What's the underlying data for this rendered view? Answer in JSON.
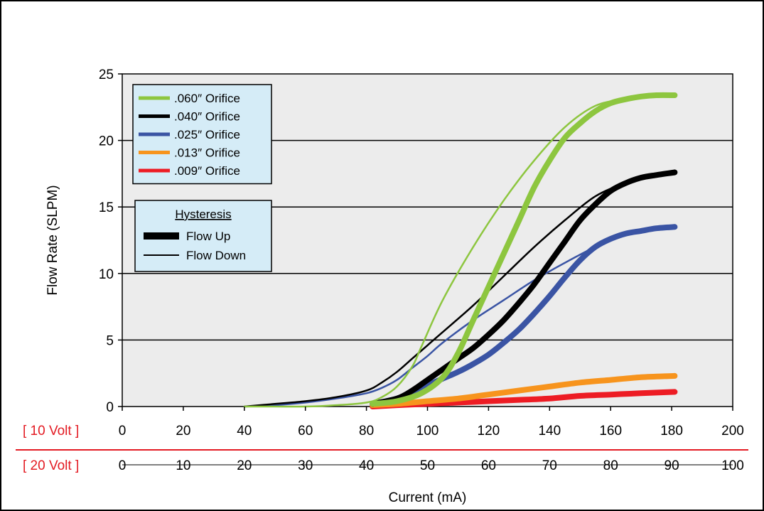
{
  "chart_data": {
    "type": "line",
    "ylabel": "Flow Rate (SLPM)",
    "xlabel": "Current (mA)",
    "ylim": [
      0,
      25
    ],
    "yticks": [
      0,
      5,
      10,
      15,
      20,
      25
    ],
    "grid": "horizontal",
    "xlim": [
      0,
      200
    ],
    "xaxes": [
      {
        "label": "[ 10 Volt ]",
        "ticks": [
          "0",
          "20",
          "40",
          "60",
          "80",
          "100",
          "120",
          "140",
          "160",
          "180",
          "200"
        ]
      },
      {
        "label": "[ 20 Volt ]",
        "ticks": [
          "0",
          "10",
          "20",
          "30",
          "40",
          "50",
          "60",
          "70",
          "80",
          "90",
          "100"
        ]
      }
    ],
    "legend_position": "top-left",
    "series": [
      {
        "name": ".060″ Orifice",
        "color": "#8dc63f",
        "up": [
          [
            82,
            0.2
          ],
          [
            90,
            0.4
          ],
          [
            98,
            1.0
          ],
          [
            105,
            2.2
          ],
          [
            110,
            4.0
          ],
          [
            115,
            6.5
          ],
          [
            120,
            9.0
          ],
          [
            125,
            11.5
          ],
          [
            130,
            14.0
          ],
          [
            135,
            16.5
          ],
          [
            140,
            18.5
          ],
          [
            145,
            20.2
          ],
          [
            150,
            21.3
          ],
          [
            155,
            22.2
          ],
          [
            160,
            22.8
          ],
          [
            165,
            23.1
          ],
          [
            170,
            23.3
          ],
          [
            175,
            23.4
          ],
          [
            181,
            23.4
          ]
        ],
        "down": [
          [
            181,
            23.4
          ],
          [
            175,
            23.3
          ],
          [
            165,
            23.1
          ],
          [
            155,
            22.6
          ],
          [
            145,
            21.0
          ],
          [
            135,
            18.5
          ],
          [
            125,
            15.5
          ],
          [
            115,
            12.0
          ],
          [
            105,
            8.0
          ],
          [
            98,
            4.5
          ],
          [
            95,
            3.0
          ],
          [
            90,
            1.5
          ],
          [
            85,
            0.7
          ],
          [
            80,
            0.3
          ],
          [
            70,
            0.1
          ],
          [
            60,
            0.0
          ],
          [
            50,
            0.0
          ],
          [
            40,
            0.0
          ]
        ]
      },
      {
        "name": ".040″ Orifice",
        "color": "#000000",
        "up": [
          [
            82,
            0.2
          ],
          [
            90,
            0.6
          ],
          [
            95,
            1.2
          ],
          [
            100,
            2.0
          ],
          [
            105,
            2.8
          ],
          [
            110,
            3.6
          ],
          [
            115,
            4.4
          ],
          [
            120,
            5.4
          ],
          [
            125,
            6.5
          ],
          [
            130,
            7.8
          ],
          [
            135,
            9.2
          ],
          [
            140,
            10.8
          ],
          [
            145,
            12.4
          ],
          [
            150,
            14.0
          ],
          [
            155,
            15.2
          ],
          [
            160,
            16.2
          ],
          [
            165,
            16.8
          ],
          [
            170,
            17.2
          ],
          [
            175,
            17.4
          ],
          [
            181,
            17.6
          ]
        ],
        "down": [
          [
            181,
            17.6
          ],
          [
            175,
            17.4
          ],
          [
            165,
            16.8
          ],
          [
            155,
            15.8
          ],
          [
            145,
            14.0
          ],
          [
            135,
            12.0
          ],
          [
            125,
            9.8
          ],
          [
            115,
            7.6
          ],
          [
            105,
            5.6
          ],
          [
            100,
            4.6
          ],
          [
            95,
            3.6
          ],
          [
            90,
            2.6
          ],
          [
            85,
            1.8
          ],
          [
            80,
            1.2
          ],
          [
            70,
            0.7
          ],
          [
            60,
            0.4
          ],
          [
            50,
            0.2
          ],
          [
            40,
            0.0
          ]
        ]
      },
      {
        "name": ".025″ Orifice",
        "color": "#3a54a4",
        "up": [
          [
            82,
            0.2
          ],
          [
            90,
            0.6
          ],
          [
            95,
            1.1
          ],
          [
            100,
            1.6
          ],
          [
            105,
            2.1
          ],
          [
            110,
            2.6
          ],
          [
            115,
            3.2
          ],
          [
            120,
            3.9
          ],
          [
            125,
            4.8
          ],
          [
            130,
            5.8
          ],
          [
            135,
            7.0
          ],
          [
            140,
            8.3
          ],
          [
            145,
            9.7
          ],
          [
            150,
            11.0
          ],
          [
            155,
            12.0
          ],
          [
            160,
            12.6
          ],
          [
            165,
            13.0
          ],
          [
            170,
            13.2
          ],
          [
            175,
            13.4
          ],
          [
            181,
            13.5
          ]
        ],
        "down": [
          [
            181,
            13.5
          ],
          [
            175,
            13.4
          ],
          [
            165,
            13.0
          ],
          [
            155,
            12.0
          ],
          [
            145,
            10.8
          ],
          [
            135,
            9.5
          ],
          [
            125,
            8.0
          ],
          [
            115,
            6.5
          ],
          [
            105,
            4.8
          ],
          [
            100,
            3.8
          ],
          [
            95,
            2.9
          ],
          [
            90,
            2.0
          ],
          [
            85,
            1.4
          ],
          [
            80,
            1.0
          ],
          [
            70,
            0.6
          ],
          [
            60,
            0.3
          ],
          [
            50,
            0.1
          ],
          [
            40,
            0.0
          ]
        ]
      },
      {
        "name": ".013″ Orifice",
        "color": "#f7941d",
        "up": [
          [
            82,
            0.1
          ],
          [
            90,
            0.2
          ],
          [
            100,
            0.4
          ],
          [
            110,
            0.6
          ],
          [
            120,
            0.9
          ],
          [
            130,
            1.2
          ],
          [
            140,
            1.5
          ],
          [
            150,
            1.8
          ],
          [
            160,
            2.0
          ],
          [
            170,
            2.2
          ],
          [
            181,
            2.3
          ]
        ],
        "down": [
          [
            181,
            2.3
          ],
          [
            170,
            2.2
          ],
          [
            160,
            2.0
          ],
          [
            150,
            1.8
          ],
          [
            140,
            1.6
          ],
          [
            130,
            1.3
          ],
          [
            120,
            1.0
          ],
          [
            110,
            0.7
          ],
          [
            100,
            0.4
          ],
          [
            90,
            0.2
          ],
          [
            82,
            0.1
          ]
        ]
      },
      {
        "name": ".009″ Orifice",
        "color": "#ed1c24",
        "up": [
          [
            82,
            0.0
          ],
          [
            90,
            0.1
          ],
          [
            100,
            0.2
          ],
          [
            110,
            0.3
          ],
          [
            120,
            0.4
          ],
          [
            130,
            0.5
          ],
          [
            140,
            0.6
          ],
          [
            150,
            0.8
          ],
          [
            160,
            0.9
          ],
          [
            170,
            1.0
          ],
          [
            181,
            1.1
          ]
        ],
        "down": [
          [
            181,
            1.1
          ],
          [
            170,
            1.0
          ],
          [
            160,
            0.9
          ],
          [
            150,
            0.8
          ],
          [
            140,
            0.65
          ],
          [
            130,
            0.55
          ],
          [
            120,
            0.45
          ],
          [
            110,
            0.35
          ],
          [
            100,
            0.25
          ],
          [
            90,
            0.1
          ],
          [
            82,
            0.0
          ]
        ]
      }
    ],
    "hysteresis_legend": {
      "title": "Hysteresis",
      "items": [
        {
          "label": "Flow Up",
          "style": "thick"
        },
        {
          "label": "Flow Down",
          "style": "thin"
        }
      ]
    },
    "colors": {
      "plot_bg": "#ececec",
      "legend_bg": "#d5ecf7",
      "axis_label_accent": "#e31b23",
      "grid": "#000000"
    }
  }
}
